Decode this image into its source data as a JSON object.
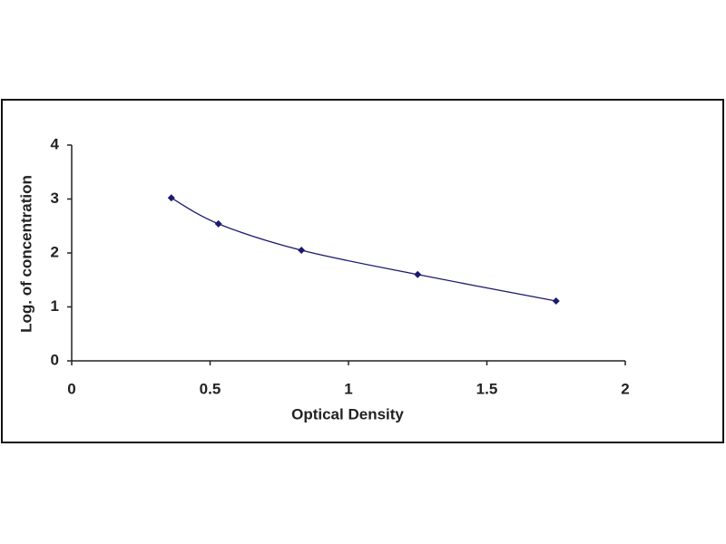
{
  "chart_data": {
    "type": "scatter",
    "x_label": "Optical Density",
    "y_label": "Log. of concentration",
    "x": [
      0.36,
      0.53,
      0.83,
      1.25,
      1.75
    ],
    "values": [
      3.02,
      2.54,
      2.05,
      1.6,
      1.11
    ],
    "color": "#1a1a6e",
    "line": true,
    "xlim": [
      0,
      2
    ],
    "xticks": [
      0,
      0.5,
      1,
      1.5,
      2
    ],
    "ylim": [
      0,
      4
    ],
    "yticks": [
      0,
      1,
      2,
      3,
      4
    ],
    "grid": false
  }
}
